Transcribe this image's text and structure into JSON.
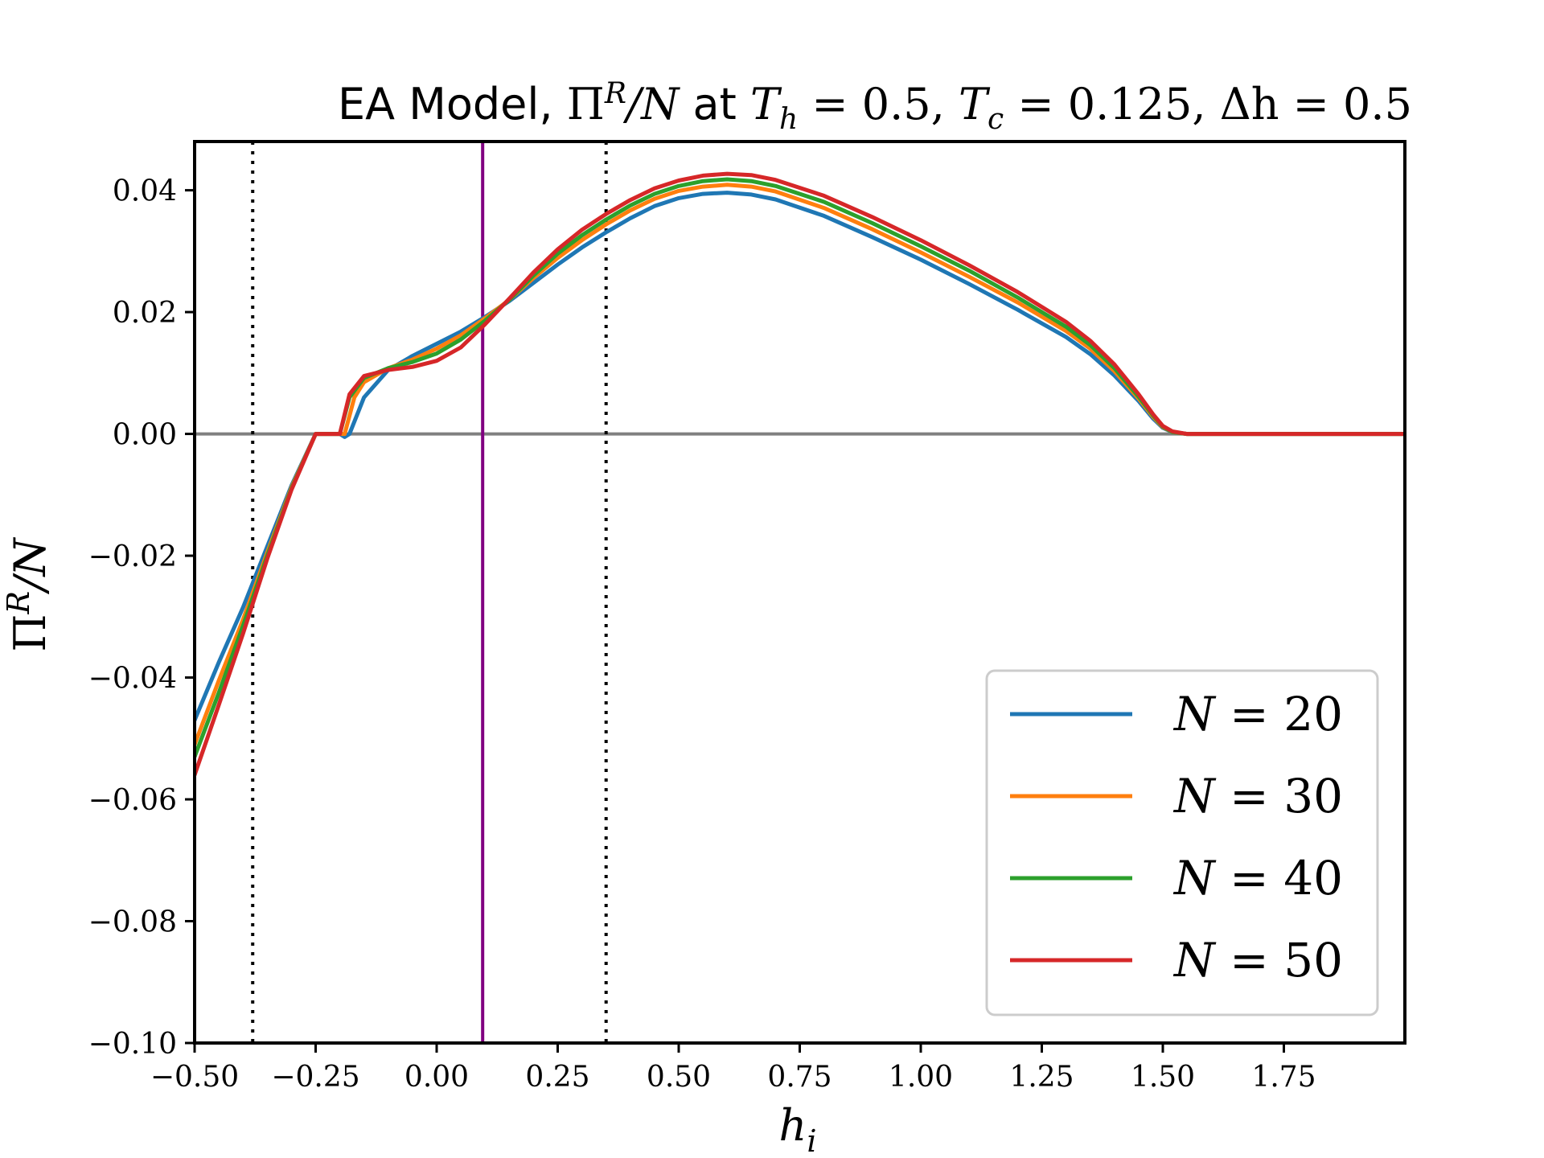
{
  "chart_data": {
    "type": "line",
    "title": "EA Model, Π^R/N at T_h = 0.5, T_c = 0.125, Δh = 0.5",
    "title_parts": {
      "prefix": "EA Model, ",
      "pi": "Π",
      "pi_sup": "R",
      "pi_rest": "/N",
      "at": " at ",
      "th": "T",
      "th_sub": "h",
      "th_val": " = 0.5, ",
      "tc": "T",
      "tc_sub": "c",
      "tc_val": " = 0.125, ",
      "dh": "Δh = 0.5"
    },
    "xlabel": "h",
    "xlabel_sub": "i",
    "ylabel": "Π",
    "ylabel_sup": "R",
    "ylabel_rest": "/N",
    "xlim": [
      -0.5,
      2.0
    ],
    "ylim": [
      -0.1,
      0.048
    ],
    "xticks": [
      -0.5,
      -0.25,
      0.0,
      0.25,
      0.5,
      0.75,
      1.0,
      1.25,
      1.5,
      1.75
    ],
    "xtick_labels": [
      "−0.50",
      "−0.25",
      "0.00",
      "0.25",
      "0.50",
      "0.75",
      "1.00",
      "1.25",
      "1.50",
      "1.75"
    ],
    "yticks": [
      -0.1,
      -0.08,
      -0.06,
      -0.04,
      -0.02,
      0.0,
      0.02,
      0.04
    ],
    "ytick_labels": [
      "−0.10",
      "−0.08",
      "−0.06",
      "−0.04",
      "−0.02",
      "0.00",
      "0.02",
      "0.04"
    ],
    "grid": false,
    "legend_position": "lower-right",
    "reference_lines": {
      "horizontal": {
        "y": 0.0,
        "color": "#808080"
      },
      "vertical_solid": {
        "x": 0.095,
        "color": "#800080"
      },
      "vertical_dotted": [
        {
          "x": -0.38,
          "color": "#000000"
        },
        {
          "x": 0.35,
          "color": "#000000"
        }
      ]
    },
    "series": [
      {
        "name": "N = 20",
        "name_var": "N",
        "name_val": " = 20",
        "color": "#1f77b4",
        "x": [
          -0.5,
          -0.45,
          -0.4,
          -0.35,
          -0.3,
          -0.25,
          -0.2,
          -0.19,
          -0.18,
          -0.15,
          -0.1,
          -0.05,
          0.0,
          0.05,
          0.1,
          0.15,
          0.2,
          0.25,
          0.3,
          0.35,
          0.4,
          0.45,
          0.5,
          0.55,
          0.6,
          0.65,
          0.7,
          0.8,
          0.9,
          1.0,
          1.1,
          1.2,
          1.3,
          1.35,
          1.4,
          1.45,
          1.48,
          1.5,
          1.52,
          1.55,
          1.6,
          1.8,
          2.0
        ],
        "y": [
          -0.047,
          -0.0375,
          -0.0285,
          -0.0185,
          -0.0085,
          0.0,
          0.0,
          -0.0005,
          0.0,
          0.006,
          0.0105,
          0.0128,
          0.0148,
          0.0168,
          0.0192,
          0.0218,
          0.0248,
          0.0278,
          0.0306,
          0.0331,
          0.0354,
          0.0374,
          0.0387,
          0.0394,
          0.0396,
          0.0393,
          0.0385,
          0.0358,
          0.0323,
          0.0286,
          0.0246,
          0.0204,
          0.0159,
          0.0131,
          0.0096,
          0.0054,
          0.0025,
          0.001,
          0.0003,
          0.0,
          0.0,
          0.0,
          0.0
        ]
      },
      {
        "name": "N = 30",
        "name_var": "N",
        "name_val": " = 30",
        "color": "#ff7f0e",
        "x": [
          -0.5,
          -0.45,
          -0.4,
          -0.35,
          -0.3,
          -0.25,
          -0.2,
          -0.19,
          -0.17,
          -0.15,
          -0.1,
          -0.05,
          0.0,
          0.05,
          0.1,
          0.15,
          0.2,
          0.25,
          0.3,
          0.35,
          0.4,
          0.45,
          0.5,
          0.55,
          0.6,
          0.65,
          0.7,
          0.8,
          0.9,
          1.0,
          1.1,
          1.2,
          1.3,
          1.35,
          1.4,
          1.45,
          1.48,
          1.5,
          1.52,
          1.55,
          1.6,
          1.8,
          2.0
        ],
        "y": [
          -0.051,
          -0.0405,
          -0.0305,
          -0.0195,
          -0.0088,
          0.0,
          0.0,
          0.0,
          0.006,
          0.0085,
          0.0108,
          0.0122,
          0.014,
          0.0162,
          0.019,
          0.022,
          0.0256,
          0.0289,
          0.0318,
          0.0344,
          0.0367,
          0.0386,
          0.0399,
          0.0406,
          0.0409,
          0.0406,
          0.0398,
          0.0371,
          0.0336,
          0.0298,
          0.0258,
          0.0216,
          0.0169,
          0.014,
          0.0103,
          0.0058,
          0.0028,
          0.0011,
          0.0003,
          0.0,
          0.0,
          0.0,
          0.0
        ]
      },
      {
        "name": "N = 40",
        "name_var": "N",
        "name_val": " = 40",
        "color": "#2ca02c",
        "x": [
          -0.5,
          -0.45,
          -0.4,
          -0.35,
          -0.3,
          -0.25,
          -0.2,
          -0.18,
          -0.15,
          -0.1,
          -0.05,
          0.0,
          0.05,
          0.1,
          0.15,
          0.2,
          0.25,
          0.3,
          0.35,
          0.4,
          0.45,
          0.5,
          0.55,
          0.6,
          0.65,
          0.7,
          0.8,
          0.9,
          1.0,
          1.1,
          1.2,
          1.3,
          1.35,
          1.4,
          1.45,
          1.48,
          1.5,
          1.52,
          1.55,
          1.6,
          1.8,
          2.0
        ],
        "y": [
          -0.053,
          -0.0425,
          -0.0315,
          -0.02,
          -0.009,
          0.0,
          0.0,
          0.006,
          0.0092,
          0.0108,
          0.0118,
          0.0132,
          0.0155,
          0.0186,
          0.022,
          0.026,
          0.0296,
          0.0326,
          0.0352,
          0.0375,
          0.0394,
          0.0407,
          0.0415,
          0.0418,
          0.0415,
          0.0407,
          0.0381,
          0.0346,
          0.0308,
          0.0268,
          0.0224,
          0.0176,
          0.0146,
          0.0108,
          0.0061,
          0.003,
          0.0012,
          0.0003,
          0.0,
          0.0,
          0.0,
          0.0
        ]
      },
      {
        "name": "N = 50",
        "name_var": "N",
        "name_val": " = 50",
        "color": "#d62728",
        "x": [
          -0.5,
          -0.45,
          -0.4,
          -0.35,
          -0.3,
          -0.25,
          -0.2,
          -0.18,
          -0.15,
          -0.1,
          -0.05,
          0.0,
          0.05,
          0.1,
          0.15,
          0.2,
          0.25,
          0.3,
          0.35,
          0.4,
          0.45,
          0.5,
          0.55,
          0.6,
          0.65,
          0.7,
          0.8,
          0.9,
          1.0,
          1.1,
          1.2,
          1.3,
          1.35,
          1.4,
          1.45,
          1.48,
          1.5,
          1.52,
          1.55,
          1.6,
          1.8,
          2.0
        ],
        "y": [
          -0.056,
          -0.0445,
          -0.0328,
          -0.0205,
          -0.0092,
          0.0,
          0.0,
          0.0065,
          0.0095,
          0.0105,
          0.011,
          0.012,
          0.0142,
          0.018,
          0.0222,
          0.0265,
          0.0303,
          0.0335,
          0.0361,
          0.0384,
          0.0403,
          0.0416,
          0.0424,
          0.0427,
          0.0425,
          0.0417,
          0.0391,
          0.0356,
          0.0318,
          0.0277,
          0.0233,
          0.0184,
          0.0153,
          0.0114,
          0.0065,
          0.0032,
          0.0013,
          0.0004,
          0.0,
          0.0,
          0.0,
          0.0
        ]
      }
    ]
  }
}
